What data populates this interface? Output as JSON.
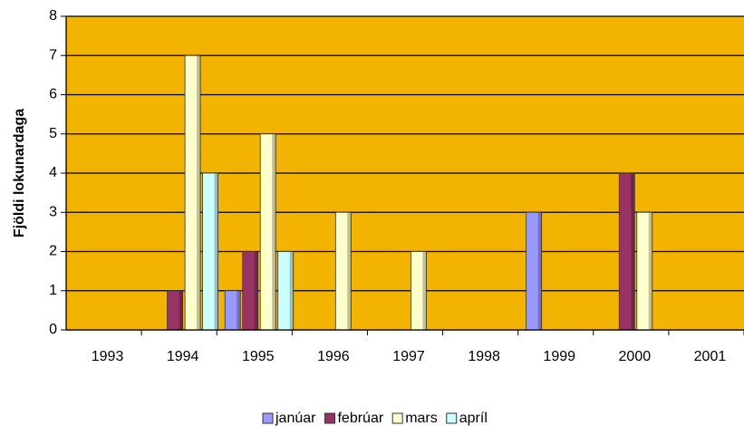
{
  "chart_data": {
    "type": "bar",
    "y_label": "Fjöldi lokunardaga",
    "categories": [
      "1993",
      "1994",
      "1995",
      "1996",
      "1997",
      "1998",
      "1999",
      "2000",
      "2001"
    ],
    "series": [
      {
        "name": "janúar",
        "color": "#9999ff",
        "values": [
          0,
          0,
          1,
          0,
          0,
          0,
          3,
          0,
          0
        ]
      },
      {
        "name": "febrúar",
        "color": "#993366",
        "values": [
          0,
          1,
          2,
          0,
          0,
          0,
          0,
          4,
          0
        ]
      },
      {
        "name": "mars",
        "color": "#ffffcc",
        "values": [
          0,
          7,
          5,
          3,
          2,
          0,
          0,
          3,
          0
        ]
      },
      {
        "name": "apríl",
        "color": "#ccffff",
        "values": [
          0,
          4,
          2,
          0,
          0,
          0,
          0,
          0,
          0
        ]
      }
    ],
    "ylim": [
      0,
      8
    ],
    "yticks": [
      0,
      1,
      2,
      3,
      4,
      5,
      6,
      7,
      8
    ],
    "grid": true,
    "plot_color": "#f2b400",
    "legend": "bottom"
  }
}
